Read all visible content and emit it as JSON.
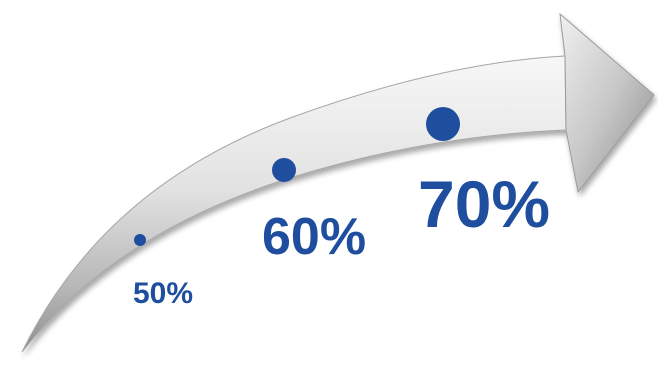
{
  "milestones": [
    {
      "label": "50%"
    },
    {
      "label": "60%"
    },
    {
      "label": "70%"
    }
  ],
  "colors": {
    "text": "#1f4e9e",
    "dot": "#1f4e9e",
    "arrow_light": "#f7f7f7",
    "arrow_mid": "#c9c9c9",
    "arrow_dark": "#8c8c8c"
  }
}
